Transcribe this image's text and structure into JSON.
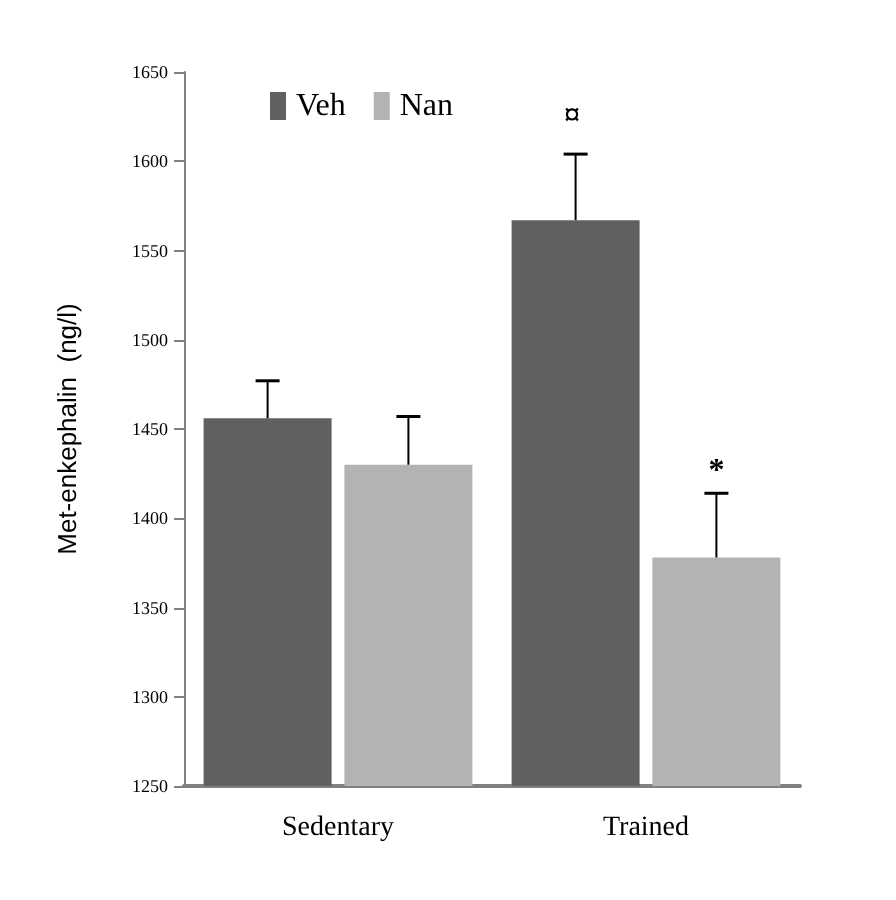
{
  "chart_data": {
    "type": "bar",
    "ylabel": "Met-enkephalin  (ng/l)",
    "categories": [
      "Sedentary",
      "Trained"
    ],
    "series": [
      {
        "name": "Veh",
        "color": "#606060",
        "values": [
          1456,
          1567
        ],
        "errors": [
          [
            1456,
            1477
          ],
          [
            1567,
            1604
          ]
        ]
      },
      {
        "name": "Nan",
        "color": "#b3b3b3",
        "values": [
          1430,
          1378
        ],
        "errors": [
          [
            1430,
            1457
          ],
          [
            1378,
            1414
          ]
        ]
      }
    ],
    "ylim": [
      1250,
      1650
    ],
    "yticks": [
      1250,
      1300,
      1350,
      1400,
      1450,
      1500,
      1550,
      1600,
      1650
    ],
    "grid": false,
    "legend": "top left",
    "annotations": [
      "¤",
      {
        "text": "*",
        "x": "Trained",
        "y": 1414
      }
    ]
  }
}
